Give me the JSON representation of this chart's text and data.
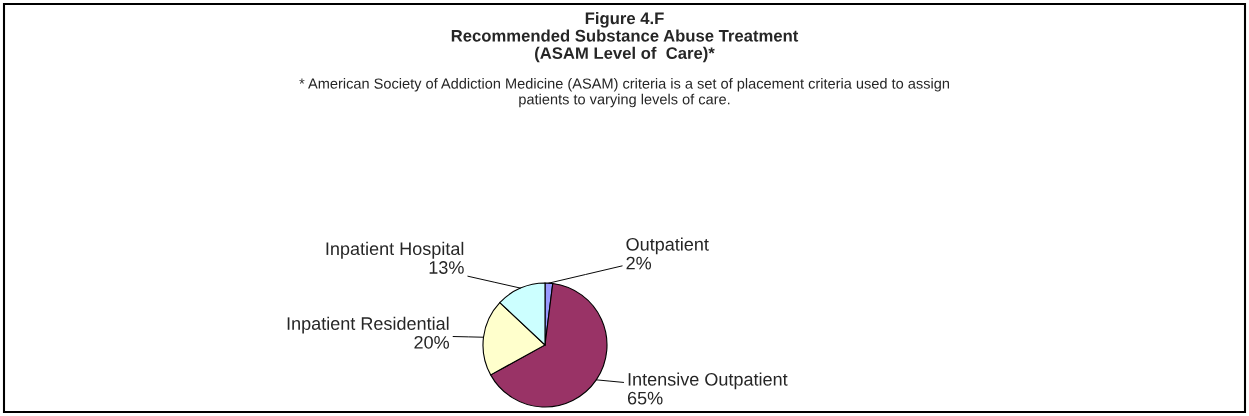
{
  "chart_data": {
    "type": "pie",
    "title": "Figure 4.F\nRecommended Substance Abuse Treatment\n(ASAM Level of  Care)*",
    "annotations": [
      "* American Society of Addiction Medicine (ASAM) criteria is a set of placement criteria used to assign\npatients to varying levels of care."
    ],
    "categories": [
      "Outpatient",
      "Intensive Outpatient",
      "Inpatient Residential",
      "Inpatient Hospital"
    ],
    "values": [
      2,
      65,
      20,
      13
    ],
    "value_labels": [
      "2%",
      "65%",
      "20%",
      "13%"
    ],
    "colors": [
      "#9999ff",
      "#993366",
      "#ffffcc",
      "#ccffff"
    ],
    "legend": false
  }
}
